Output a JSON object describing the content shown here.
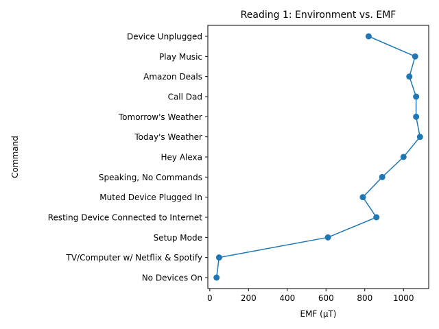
{
  "chart_data": {
    "type": "line",
    "title": "Reading 1: Environment vs. EMF",
    "xlabel": "EMF (µT)",
    "ylabel": "Command",
    "xlim": [
      -10,
      1130
    ],
    "xticks": [
      0,
      200,
      400,
      600,
      800,
      1000
    ],
    "grid": false,
    "legend": "none",
    "color": "#1f77b4",
    "marker": "circle",
    "categories": [
      "No Devices On",
      "TV/Computer w/ Netflix & Spotify",
      "Setup Mode",
      "Resting Device Connected to Internet",
      "Muted Device Plugged In",
      "Speaking, No Commands",
      "Hey Alexa",
      "Today's Weather",
      "Tomorrow's Weather",
      "Call Dad",
      "Amazon Deals",
      "Play Music",
      "Device Unplugged"
    ],
    "values": [
      35,
      48,
      610,
      860,
      790,
      890,
      1000,
      1085,
      1065,
      1065,
      1030,
      1060,
      820
    ]
  }
}
